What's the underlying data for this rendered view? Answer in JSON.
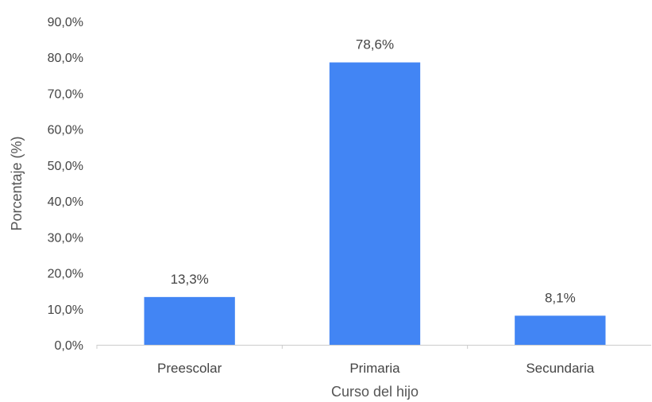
{
  "chart_data": {
    "type": "bar",
    "categories": [
      "Preescolar",
      "Primaria",
      "Secundaria"
    ],
    "values": [
      13.3,
      78.6,
      8.1
    ],
    "data_labels": [
      "13,3%",
      "78,6%",
      "8,1%"
    ],
    "title": "",
    "xlabel": "Curso del hijo",
    "ylabel": "Porcentaje (%)",
    "ylim": [
      0,
      90
    ],
    "yticks": [
      0,
      10,
      20,
      30,
      40,
      50,
      60,
      70,
      80,
      90
    ],
    "ytick_labels": [
      "0,0%",
      "10,0%",
      "20,0%",
      "30,0%",
      "40,0%",
      "50,0%",
      "60,0%",
      "70,0%",
      "80,0%",
      "90,0%"
    ],
    "grid": false,
    "legend": "none",
    "bar_color": "#4285f4",
    "axis_color": "#cccccc"
  }
}
